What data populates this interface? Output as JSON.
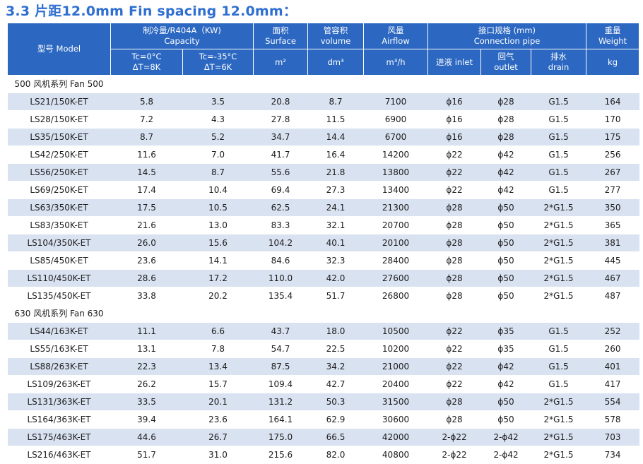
{
  "title": "3.3 片距12.0mm  Fin spacing 12.0mm：",
  "header": {
    "model": "型号 Model",
    "capacity_cn": "制冷量/R404A（KW)",
    "capacity_en": "Capacity",
    "cap1_top": "Tc=0°C",
    "cap1_bottom": "ΔT=8K",
    "cap2_top": "Tc=-35°C",
    "cap2_bottom": "ΔT=6K",
    "surface_cn": "面积",
    "surface_en": "Surface",
    "surface_unit": "m²",
    "volume_cn": "管容积",
    "volume_en": "volume",
    "volume_unit": "dm³",
    "airflow_cn": "风量",
    "airflow_en": "Airflow",
    "airflow_unit": "m³/h",
    "pipe_cn": "接口规格 (mm)",
    "pipe_en": "Connection pipe",
    "inlet": "进液 inlet",
    "outlet_cn": "回气",
    "outlet_en": "outlet",
    "drain_cn": "排水",
    "drain_en": "drain",
    "weight_cn": "重量",
    "weight_en": "Weight",
    "weight_unit": "kg"
  },
  "sections": [
    {
      "label": "500 风机系列    Fan 500",
      "rows": [
        [
          "LS21/150K-ET",
          "5.8",
          "3.5",
          "20.8",
          "8.7",
          "7100",
          "ϕ16",
          "ϕ28",
          "G1.5",
          "164"
        ],
        [
          "LS28/150K-ET",
          "7.2",
          "4.3",
          "27.8",
          "11.5",
          "6900",
          "ϕ16",
          "ϕ28",
          "G1.5",
          "170"
        ],
        [
          "LS35/150K-ET",
          "8.7",
          "5.2",
          "34.7",
          "14.4",
          "6700",
          "ϕ16",
          "ϕ28",
          "G1.5",
          "175"
        ],
        [
          "LS42/250K-ET",
          "11.6",
          "7.0",
          "41.7",
          "16.4",
          "14200",
          "ϕ22",
          "ϕ42",
          "G1.5",
          "256"
        ],
        [
          "LS56/250K-ET",
          "14.5",
          "8.7",
          "55.6",
          "21.8",
          "13800",
          "ϕ22",
          "ϕ42",
          "G1.5",
          "267"
        ],
        [
          "LS69/250K-ET",
          "17.4",
          "10.4",
          "69.4",
          "27.3",
          "13400",
          "ϕ22",
          "ϕ42",
          "G1.5",
          "277"
        ],
        [
          "LS63/350K-ET",
          "17.5",
          "10.5",
          "62.5",
          "24.1",
          "21300",
          "ϕ28",
          "ϕ50",
          "2*G1.5",
          "350"
        ],
        [
          "LS83/350K-ET",
          "21.6",
          "13.0",
          "83.3",
          "32.1",
          "20700",
          "ϕ28",
          "ϕ50",
          "2*G1.5",
          "365"
        ],
        [
          "LS104/350K-ET",
          "26.0",
          "15.6",
          "104.2",
          "40.1",
          "20100",
          "ϕ28",
          "ϕ50",
          "2*G1.5",
          "381"
        ],
        [
          "LS85/450K-ET",
          "23.6",
          "14.1",
          "84.6",
          "32.3",
          "28400",
          "ϕ28",
          "ϕ50",
          "2*G1.5",
          "445"
        ],
        [
          "LS110/450K-ET",
          "28.6",
          "17.2",
          "110.0",
          "42.0",
          "27600",
          "ϕ28",
          "ϕ50",
          "2*G1.5",
          "467"
        ],
        [
          "LS135/450K-ET",
          "33.8",
          "20.2",
          "135.4",
          "51.7",
          "26800",
          "ϕ28",
          "ϕ50",
          "2*G1.5",
          "487"
        ]
      ]
    },
    {
      "label": "630 风机系列    Fan 630",
      "rows": [
        [
          "LS44/163K-ET",
          "11.1",
          "6.6",
          "43.7",
          "18.0",
          "10500",
          "ϕ22",
          "ϕ35",
          "G1.5",
          "252"
        ],
        [
          "LS55/163K-ET",
          "13.1",
          "7.8",
          "54.7",
          "22.5",
          "10200",
          "ϕ22",
          "ϕ35",
          "G1.5",
          "260"
        ],
        [
          "LS88/263K-ET",
          "22.3",
          "13.4",
          "87.5",
          "34.2",
          "21000",
          "ϕ22",
          "ϕ42",
          "G1.5",
          "401"
        ],
        [
          "LS109/263K-ET",
          "26.2",
          "15.7",
          "109.4",
          "42.7",
          "20400",
          "ϕ22",
          "ϕ42",
          "G1.5",
          "417"
        ],
        [
          "LS131/363K-ET",
          "33.5",
          "20.1",
          "131.2",
          "50.3",
          "31500",
          "ϕ28",
          "ϕ50",
          "2*G1.5",
          "554"
        ],
        [
          "LS164/363K-ET",
          "39.4",
          "23.6",
          "164.1",
          "62.9",
          "30600",
          "ϕ28",
          "ϕ50",
          "2*G1.5",
          "578"
        ],
        [
          "LS175/463K-ET",
          "44.6",
          "26.7",
          "175.0",
          "66.5",
          "42000",
          "2-ϕ22",
          "2-ϕ42",
          "2*G1.5",
          "703"
        ],
        [
          "LS216/463K-ET",
          "51.7",
          "31.0",
          "215.6",
          "82.0",
          "40800",
          "2-ϕ22",
          "2-ϕ42",
          "2*G1.5",
          "734"
        ]
      ]
    }
  ]
}
